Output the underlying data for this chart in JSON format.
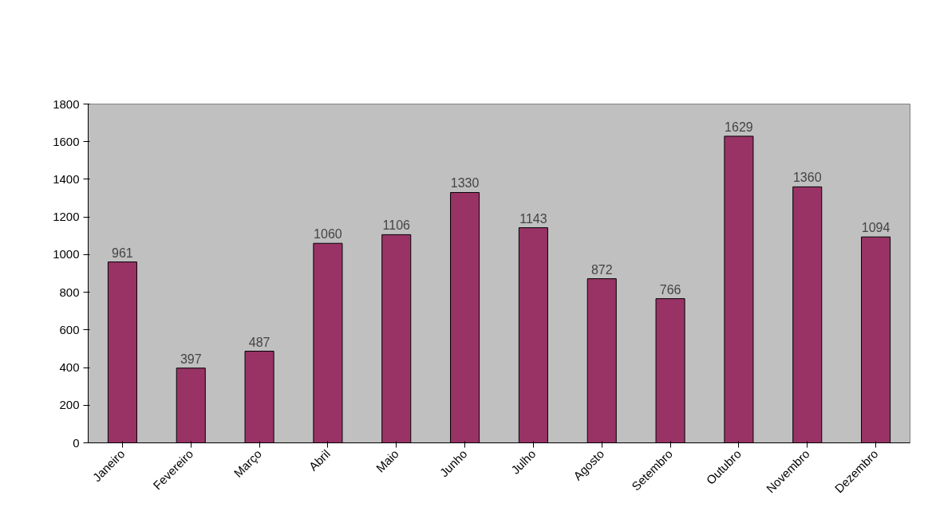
{
  "chart_data": {
    "type": "bar",
    "categories": [
      "Janeiro",
      "Fevereiro",
      "Março",
      "Abril",
      "Maio",
      "Junho",
      "Julho",
      "Agosto",
      "Setembro",
      "Outubro",
      "Novembro",
      "Dezembro"
    ],
    "values": [
      961,
      397,
      487,
      1060,
      1106,
      1330,
      1143,
      872,
      766,
      1629,
      1360,
      1094
    ],
    "color": "#993366",
    "ylim": [
      0,
      1800
    ],
    "yticks": [
      0,
      200,
      400,
      600,
      800,
      1000,
      1200,
      1400,
      1600,
      1800
    ],
    "grid": false,
    "data_labels": true
  }
}
